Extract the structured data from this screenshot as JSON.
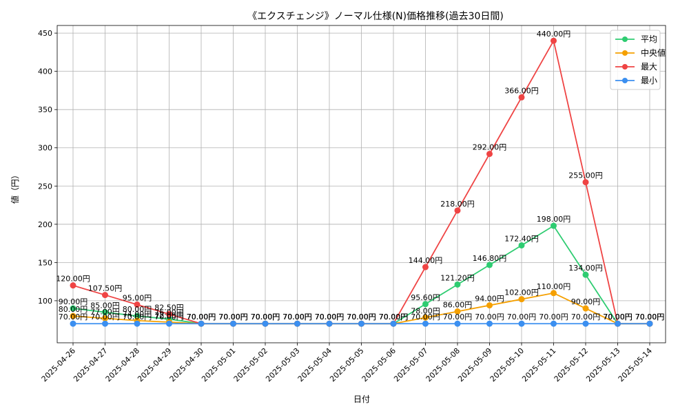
{
  "chart_data": {
    "type": "line",
    "title": "《エクスチェンジ》ノーマル仕様(N)価格推移(過去30日間)",
    "xlabel": "日付",
    "ylabel": "値（円）",
    "ylim": [
      45,
      460
    ],
    "yticks": [
      100,
      150,
      200,
      250,
      300,
      350,
      400,
      450
    ],
    "grid": true,
    "legend_position": "top-right",
    "label_suffix": "円",
    "categories": [
      "2025-04-26",
      "2025-04-27",
      "2025-04-28",
      "2025-04-29",
      "2025-04-30",
      "2025-05-01",
      "2025-05-02",
      "2025-05-03",
      "2025-05-04",
      "2025-05-05",
      "2025-05-06",
      "2025-05-07",
      "2025-05-08",
      "2025-05-09",
      "2025-05-10",
      "2025-05-11",
      "2025-05-12",
      "2025-05-13",
      "2025-05-14"
    ],
    "series": [
      {
        "name": "平均",
        "color": "#2ecc71",
        "values": [
          90.0,
          85.0,
          80.0,
          76.0,
          70.0,
          70.0,
          70.0,
          70.0,
          70.0,
          70.0,
          70.0,
          95.6,
          121.2,
          146.8,
          172.4,
          198.0,
          134.0,
          70.0,
          70.0
        ],
        "labels": [
          "90.00円",
          "85.00円",
          "80.00円",
          "76.00円",
          "70.00円",
          "70.00円",
          "70.00円",
          "70.00円",
          "70.00円",
          "70.00円",
          "70.00円",
          "95.60円",
          "121.20円",
          "146.80円",
          "172.40円",
          "198.00円",
          "134.00円",
          "70.00円",
          "70.00円"
        ]
      },
      {
        "name": "中央値",
        "color": "#f5a000",
        "values": [
          80.0,
          77.0,
          74.0,
          72.0,
          70.0,
          70.0,
          70.0,
          70.0,
          70.0,
          70.0,
          70.0,
          78.0,
          86.0,
          94.0,
          102.0,
          110.0,
          90.0,
          70.0,
          70.0
        ],
        "labels": [
          "80.00円",
          "77.00円",
          "74.00円",
          "72.00円",
          "70.00円",
          "70.00円",
          "70.00円",
          "70.00円",
          "70.00円",
          "70.00円",
          "70.00円",
          "78.00円",
          "86.00円",
          "94.00円",
          "102.00円",
          "110.00円",
          "90.00円",
          "70.00円",
          "70.00円"
        ]
      },
      {
        "name": "最大",
        "color": "#ef4444",
        "values": [
          120.0,
          107.5,
          95.0,
          82.5,
          70.0,
          70.0,
          70.0,
          70.0,
          70.0,
          70.0,
          70.0,
          144.0,
          218.0,
          292.0,
          366.0,
          440.0,
          255.0,
          70.0,
          70.0
        ],
        "labels": [
          "120.00円",
          "107.50円",
          "95.00円",
          "82.50円",
          "70.00円",
          "70.00円",
          "70.00円",
          "70.00円",
          "70.00円",
          "70.00円",
          "70.00円",
          "144.00円",
          "218.00円",
          "292.00円",
          "366.00円",
          "440.00円",
          "255.00円",
          "70.00円",
          "70.00円"
        ]
      },
      {
        "name": "最小",
        "color": "#3b8ff0",
        "values": [
          70.0,
          70.0,
          70.0,
          70.0,
          70.0,
          70.0,
          70.0,
          70.0,
          70.0,
          70.0,
          70.0,
          70.0,
          70.0,
          70.0,
          70.0,
          70.0,
          70.0,
          70.0,
          70.0
        ],
        "labels": [
          "70.00円",
          "70.00円",
          "70.00円",
          "70.00円",
          "70.00円",
          "70.00円",
          "70.00円",
          "70.00円",
          "70.00円",
          "70.00円",
          "70.00円",
          "70.00円",
          "70.00円",
          "70.00円",
          "70.00円",
          "70.00円",
          "70.00円",
          "70.00円",
          "70.00円"
        ]
      }
    ]
  }
}
